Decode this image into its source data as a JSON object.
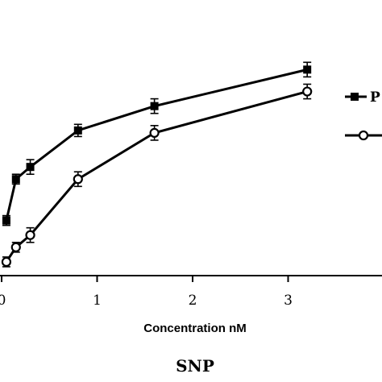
{
  "chart_data": {
    "type": "line",
    "xlabel": "Concentration nM",
    "caption": "SNP",
    "xlim": [
      0,
      4
    ],
    "ylim": [
      0,
      1
    ],
    "x_ticks": [
      "0",
      "1",
      "2",
      "3"
    ],
    "series": [
      {
        "name": "P",
        "marker": "filled-square",
        "color": "#000000",
        "x": [
          0.05,
          0.15,
          0.3,
          0.8,
          1.6,
          3.2
        ],
        "y": [
          0.2,
          0.37,
          0.42,
          0.57,
          0.67,
          0.82
        ],
        "err": [
          0.02,
          0.02,
          0.03,
          0.025,
          0.03,
          0.03
        ]
      },
      {
        "name": "",
        "marker": "open-circle",
        "color": "#000000",
        "x": [
          0.05,
          0.15,
          0.3,
          0.8,
          1.6,
          3.2
        ],
        "y": [
          0.03,
          0.09,
          0.14,
          0.37,
          0.56,
          0.73
        ],
        "err": [
          0.02,
          0.02,
          0.03,
          0.03,
          0.03,
          0.03
        ]
      }
    ],
    "legend_position": "right"
  }
}
